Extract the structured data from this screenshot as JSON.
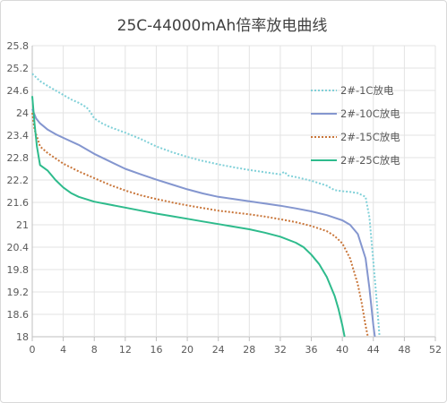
{
  "chart_data": {
    "type": "line",
    "title": "25C-44000mAh倍率放电曲线",
    "xlabel": "",
    "ylabel": "",
    "xlim": [
      0,
      52
    ],
    "ylim": [
      18,
      25.8
    ],
    "xticks": [
      0,
      4,
      8,
      12,
      16,
      20,
      24,
      28,
      32,
      36,
      40,
      44,
      48,
      52
    ],
    "yticks": [
      18,
      18.6,
      19.2,
      19.8,
      20.4,
      21,
      21.6,
      22.2,
      22.8,
      23.4,
      24,
      24.6,
      25.2,
      25.8
    ],
    "ytick_labels": [
      "18",
      "18.6",
      "19.2",
      "19.8",
      "20.4",
      "21",
      "21.6",
      "22.2",
      "22.8",
      "23.4",
      "24",
      "24.6",
      "25.2",
      "25.8"
    ],
    "grid": true,
    "legend_position": "right",
    "series": [
      {
        "name": "2#-1C放电",
        "color": "#7fd0d8",
        "dash": "dot",
        "points": [
          [
            0,
            25.05
          ],
          [
            1,
            24.85
          ],
          [
            2,
            24.72
          ],
          [
            3,
            24.6
          ],
          [
            4,
            24.48
          ],
          [
            5,
            24.36
          ],
          [
            6,
            24.27
          ],
          [
            7,
            24.15
          ],
          [
            7.5,
            24.02
          ],
          [
            8,
            23.85
          ],
          [
            9,
            23.72
          ],
          [
            10,
            23.62
          ],
          [
            12,
            23.47
          ],
          [
            14,
            23.3
          ],
          [
            16,
            23.1
          ],
          [
            18,
            22.95
          ],
          [
            20,
            22.82
          ],
          [
            22,
            22.71
          ],
          [
            24,
            22.62
          ],
          [
            26,
            22.54
          ],
          [
            28,
            22.47
          ],
          [
            30,
            22.41
          ],
          [
            32,
            22.35
          ],
          [
            32.5,
            22.42
          ],
          [
            33,
            22.32
          ],
          [
            34,
            22.28
          ],
          [
            36,
            22.18
          ],
          [
            38,
            22.05
          ],
          [
            39,
            21.93
          ],
          [
            40,
            21.9
          ],
          [
            41,
            21.88
          ],
          [
            42,
            21.85
          ],
          [
            43,
            21.75
          ],
          [
            43.5,
            21.2
          ],
          [
            44,
            20.0
          ],
          [
            44.5,
            18.8
          ],
          [
            44.8,
            18.0
          ]
        ]
      },
      {
        "name": "2#-10C放电",
        "color": "#8496cf",
        "dash": "solid",
        "points": [
          [
            0,
            24.1
          ],
          [
            0.5,
            23.85
          ],
          [
            1,
            23.72
          ],
          [
            2,
            23.55
          ],
          [
            3,
            23.43
          ],
          [
            4,
            23.33
          ],
          [
            6,
            23.14
          ],
          [
            8,
            22.9
          ],
          [
            10,
            22.7
          ],
          [
            12,
            22.5
          ],
          [
            14,
            22.35
          ],
          [
            16,
            22.21
          ],
          [
            18,
            22.08
          ],
          [
            20,
            21.95
          ],
          [
            22,
            21.84
          ],
          [
            24,
            21.75
          ],
          [
            26,
            21.69
          ],
          [
            28,
            21.63
          ],
          [
            30,
            21.57
          ],
          [
            32,
            21.51
          ],
          [
            34,
            21.44
          ],
          [
            36,
            21.36
          ],
          [
            38,
            21.26
          ],
          [
            40,
            21.12
          ],
          [
            41,
            21.0
          ],
          [
            42,
            20.75
          ],
          [
            43,
            20.1
          ],
          [
            43.5,
            19.3
          ],
          [
            44,
            18.3
          ],
          [
            44.2,
            18.0
          ]
        ]
      },
      {
        "name": "2#-15C放电",
        "color": "#c9763a",
        "dash": "dot",
        "points": [
          [
            0,
            24.0
          ],
          [
            0.3,
            23.55
          ],
          [
            0.7,
            23.3
          ],
          [
            1,
            23.1
          ],
          [
            2,
            22.92
          ],
          [
            3,
            22.78
          ],
          [
            4,
            22.64
          ],
          [
            6,
            22.43
          ],
          [
            8,
            22.25
          ],
          [
            10,
            22.07
          ],
          [
            12,
            21.92
          ],
          [
            14,
            21.79
          ],
          [
            16,
            21.69
          ],
          [
            18,
            21.6
          ],
          [
            20,
            21.52
          ],
          [
            22,
            21.45
          ],
          [
            24,
            21.38
          ],
          [
            26,
            21.33
          ],
          [
            28,
            21.28
          ],
          [
            30,
            21.22
          ],
          [
            32,
            21.15
          ],
          [
            34,
            21.07
          ],
          [
            36,
            20.97
          ],
          [
            38,
            20.83
          ],
          [
            39,
            20.7
          ],
          [
            40,
            20.5
          ],
          [
            41,
            20.1
          ],
          [
            42,
            19.4
          ],
          [
            42.5,
            18.9
          ],
          [
            43,
            18.3
          ],
          [
            43.3,
            18.0
          ]
        ]
      },
      {
        "name": "2#-25C放电",
        "color": "#2ebb8c",
        "dash": "solid",
        "points": [
          [
            0,
            24.45
          ],
          [
            0.3,
            23.7
          ],
          [
            0.6,
            23.1
          ],
          [
            1,
            22.6
          ],
          [
            2,
            22.45
          ],
          [
            3,
            22.2
          ],
          [
            4,
            22.0
          ],
          [
            5,
            21.85
          ],
          [
            6,
            21.75
          ],
          [
            8,
            21.62
          ],
          [
            10,
            21.54
          ],
          [
            12,
            21.46
          ],
          [
            14,
            21.38
          ],
          [
            16,
            21.3
          ],
          [
            18,
            21.23
          ],
          [
            20,
            21.16
          ],
          [
            22,
            21.09
          ],
          [
            24,
            21.02
          ],
          [
            26,
            20.95
          ],
          [
            28,
            20.88
          ],
          [
            30,
            20.79
          ],
          [
            32,
            20.68
          ],
          [
            34,
            20.52
          ],
          [
            35,
            20.4
          ],
          [
            36,
            20.2
          ],
          [
            37,
            19.95
          ],
          [
            38,
            19.6
          ],
          [
            39,
            19.1
          ],
          [
            39.5,
            18.75
          ],
          [
            40,
            18.3
          ],
          [
            40.3,
            18.0
          ]
        ]
      }
    ]
  }
}
